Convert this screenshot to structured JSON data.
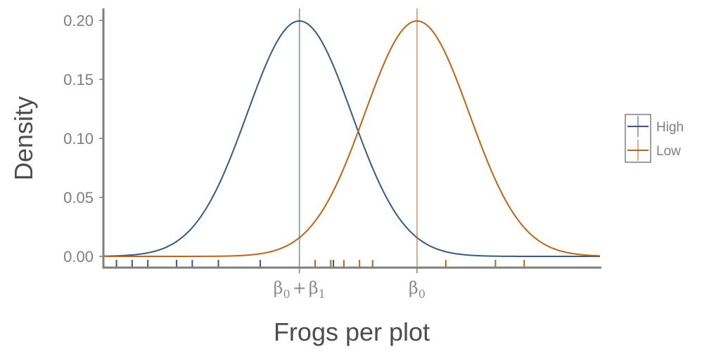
{
  "chart_data": {
    "type": "line",
    "title": "",
    "xlabel": "Frogs per plot",
    "ylabel": "Density",
    "ylim": [
      0,
      0.2
    ],
    "xlim": [
      -5,
      14
    ],
    "y_ticks": [
      0,
      0.05,
      0.1,
      0.15,
      0.2
    ],
    "y_tick_labels": [
      "0.00",
      "0.05",
      "0.10",
      "0.15",
      "0.20"
    ],
    "x_ticks": [
      {
        "x": 2.5,
        "base": "β",
        "sub": "0",
        "op": "+",
        "base2": "β",
        "sub2": "1"
      },
      {
        "x": 7,
        "base": "β",
        "sub": "0"
      }
    ],
    "grid": false,
    "legend": "right",
    "colors": {
      "High": "#36598a",
      "Low": "#c3630d",
      "axis": "#7f7f7f"
    },
    "series": [
      {
        "name": "High",
        "color": "#36598a",
        "distribution": "normal",
        "mean": 2.5,
        "sd": 2.0,
        "vline": 2.5,
        "rug": [
          -4.5,
          -3.9,
          -3.3,
          -2.2,
          -1.6,
          -0.6,
          1.0,
          3.8
        ]
      },
      {
        "name": "Low",
        "color": "#c3630d",
        "distribution": "normal",
        "mean": 7,
        "sd": 2.0,
        "vline": 7,
        "rug": [
          3.1,
          3.7,
          4.2,
          4.8,
          5.3,
          8.1,
          10.0,
          11.1
        ]
      }
    ],
    "legend_entries": [
      "High",
      "Low"
    ]
  }
}
